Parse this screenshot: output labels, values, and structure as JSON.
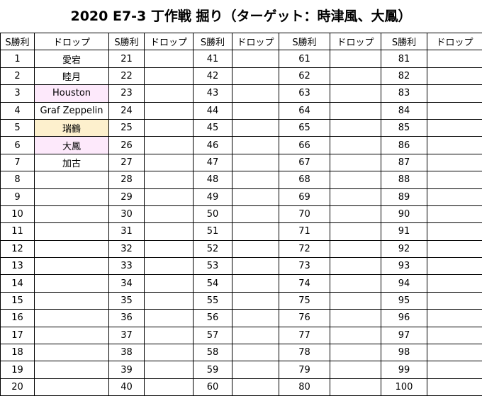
{
  "title": "2020 E7-3 丁作戦 掘り（ターゲット：時津風、大鳳）",
  "headers": {
    "wins": "S勝利",
    "drop": "ドロップ"
  },
  "colors": {
    "pink": "#fde9fb",
    "orange": "#fdf0cd"
  },
  "rows": [
    {
      "n": [
        "1",
        "21",
        "41",
        "61",
        "81"
      ],
      "drop": "愛宕",
      "hl": ""
    },
    {
      "n": [
        "2",
        "22",
        "42",
        "62",
        "82"
      ],
      "drop": "睦月",
      "hl": ""
    },
    {
      "n": [
        "3",
        "23",
        "43",
        "63",
        "83"
      ],
      "drop": "Houston",
      "hl": "pink"
    },
    {
      "n": [
        "4",
        "24",
        "44",
        "64",
        "84"
      ],
      "drop": "Graf Zeppelin",
      "hl": ""
    },
    {
      "n": [
        "5",
        "25",
        "45",
        "65",
        "85"
      ],
      "drop": "瑞鶴",
      "hl": "orange"
    },
    {
      "n": [
        "6",
        "26",
        "46",
        "66",
        "86"
      ],
      "drop": "大鳳",
      "hl": "pink"
    },
    {
      "n": [
        "7",
        "27",
        "47",
        "67",
        "87"
      ],
      "drop": "加古",
      "hl": ""
    },
    {
      "n": [
        "8",
        "28",
        "48",
        "68",
        "88"
      ],
      "drop": "",
      "hl": ""
    },
    {
      "n": [
        "9",
        "29",
        "49",
        "69",
        "89"
      ],
      "drop": "",
      "hl": ""
    },
    {
      "n": [
        "10",
        "30",
        "50",
        "70",
        "90"
      ],
      "drop": "",
      "hl": ""
    },
    {
      "n": [
        "11",
        "31",
        "51",
        "71",
        "91"
      ],
      "drop": "",
      "hl": ""
    },
    {
      "n": [
        "12",
        "32",
        "52",
        "72",
        "92"
      ],
      "drop": "",
      "hl": ""
    },
    {
      "n": [
        "13",
        "33",
        "53",
        "73",
        "93"
      ],
      "drop": "",
      "hl": ""
    },
    {
      "n": [
        "14",
        "34",
        "54",
        "74",
        "94"
      ],
      "drop": "",
      "hl": ""
    },
    {
      "n": [
        "15",
        "35",
        "55",
        "75",
        "95"
      ],
      "drop": "",
      "hl": ""
    },
    {
      "n": [
        "16",
        "36",
        "56",
        "76",
        "96"
      ],
      "drop": "",
      "hl": ""
    },
    {
      "n": [
        "17",
        "37",
        "57",
        "77",
        "97"
      ],
      "drop": "",
      "hl": ""
    },
    {
      "n": [
        "18",
        "38",
        "58",
        "78",
        "98"
      ],
      "drop": "",
      "hl": ""
    },
    {
      "n": [
        "19",
        "39",
        "59",
        "79",
        "99"
      ],
      "drop": "",
      "hl": ""
    },
    {
      "n": [
        "20",
        "40",
        "60",
        "80",
        "100"
      ],
      "drop": "",
      "hl": ""
    }
  ]
}
